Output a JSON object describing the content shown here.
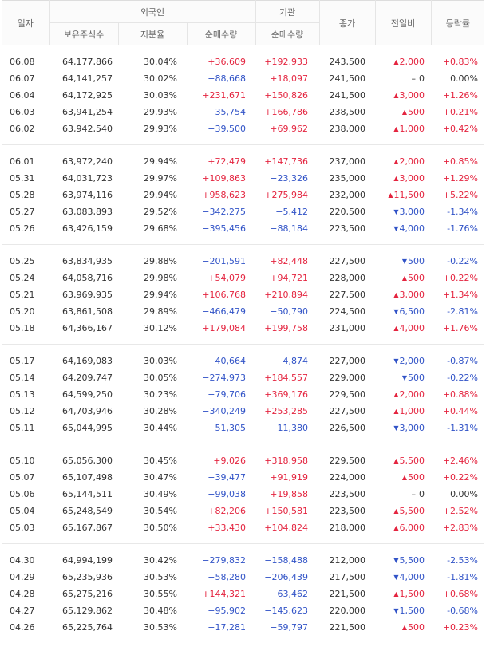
{
  "headers": {
    "date": "일자",
    "foreign": "외국인",
    "institution": "기관",
    "close": "종가",
    "change": "전일비",
    "rate": "등락률",
    "shares_held": "보유주식수",
    "holding_ratio": "지분율",
    "foreign_net": "순매수량",
    "inst_net": "순매수량"
  },
  "colors": {
    "up": "#e4243f",
    "down": "#3153c7"
  },
  "groups": [
    [
      {
        "date": "06.08",
        "held": "64,177,866",
        "ratio": "30.04%",
        "fnet": "+36,609",
        "inet": "+192,933",
        "close": "243,500",
        "dir": "up",
        "chg": "2,000",
        "rate": "+0.83%"
      },
      {
        "date": "06.07",
        "held": "64,141,257",
        "ratio": "30.02%",
        "fnet": "−88,668",
        "inet": "+18,097",
        "close": "241,500",
        "dir": "flat",
        "chg": "0",
        "rate": "0.00%"
      },
      {
        "date": "06.04",
        "held": "64,172,925",
        "ratio": "30.03%",
        "fnet": "+231,671",
        "inet": "+150,826",
        "close": "241,500",
        "dir": "up",
        "chg": "3,000",
        "rate": "+1.26%"
      },
      {
        "date": "06.03",
        "held": "63,941,254",
        "ratio": "29.93%",
        "fnet": "−35,754",
        "inet": "+166,786",
        "close": "238,500",
        "dir": "up",
        "chg": "500",
        "rate": "+0.21%"
      },
      {
        "date": "06.02",
        "held": "63,942,540",
        "ratio": "29.93%",
        "fnet": "−39,500",
        "inet": "+69,962",
        "close": "238,000",
        "dir": "up",
        "chg": "1,000",
        "rate": "+0.42%"
      }
    ],
    [
      {
        "date": "06.01",
        "held": "63,972,240",
        "ratio": "29.94%",
        "fnet": "+72,479",
        "inet": "+147,736",
        "close": "237,000",
        "dir": "up",
        "chg": "2,000",
        "rate": "+0.85%"
      },
      {
        "date": "05.31",
        "held": "64,031,723",
        "ratio": "29.97%",
        "fnet": "+109,863",
        "inet": "−23,326",
        "close": "235,000",
        "dir": "up",
        "chg": "3,000",
        "rate": "+1.29%"
      },
      {
        "date": "05.28",
        "held": "63,974,116",
        "ratio": "29.94%",
        "fnet": "+958,623",
        "inet": "+275,984",
        "close": "232,000",
        "dir": "up",
        "chg": "11,500",
        "rate": "+5.22%"
      },
      {
        "date": "05.27",
        "held": "63,083,893",
        "ratio": "29.52%",
        "fnet": "−342,275",
        "inet": "−5,412",
        "close": "220,500",
        "dir": "down",
        "chg": "3,000",
        "rate": "-1.34%"
      },
      {
        "date": "05.26",
        "held": "63,426,159",
        "ratio": "29.68%",
        "fnet": "−395,456",
        "inet": "−88,184",
        "close": "223,500",
        "dir": "down",
        "chg": "4,000",
        "rate": "-1.76%"
      }
    ],
    [
      {
        "date": "05.25",
        "held": "63,834,935",
        "ratio": "29.88%",
        "fnet": "−201,591",
        "inet": "+82,448",
        "close": "227,500",
        "dir": "down",
        "chg": "500",
        "rate": "-0.22%"
      },
      {
        "date": "05.24",
        "held": "64,058,716",
        "ratio": "29.98%",
        "fnet": "+54,079",
        "inet": "+94,721",
        "close": "228,000",
        "dir": "up",
        "chg": "500",
        "rate": "+0.22%"
      },
      {
        "date": "05.21",
        "held": "63,969,935",
        "ratio": "29.94%",
        "fnet": "+106,768",
        "inet": "+210,894",
        "close": "227,500",
        "dir": "up",
        "chg": "3,000",
        "rate": "+1.34%"
      },
      {
        "date": "05.20",
        "held": "63,861,508",
        "ratio": "29.89%",
        "fnet": "−466,479",
        "inet": "−50,790",
        "close": "224,500",
        "dir": "down",
        "chg": "6,500",
        "rate": "-2.81%"
      },
      {
        "date": "05.18",
        "held": "64,366,167",
        "ratio": "30.12%",
        "fnet": "+179,084",
        "inet": "+199,758",
        "close": "231,000",
        "dir": "up",
        "chg": "4,000",
        "rate": "+1.76%"
      }
    ],
    [
      {
        "date": "05.17",
        "held": "64,169,083",
        "ratio": "30.03%",
        "fnet": "−40,664",
        "inet": "−4,874",
        "close": "227,000",
        "dir": "down",
        "chg": "2,000",
        "rate": "-0.87%"
      },
      {
        "date": "05.14",
        "held": "64,209,747",
        "ratio": "30.05%",
        "fnet": "−274,973",
        "inet": "+184,557",
        "close": "229,000",
        "dir": "down",
        "chg": "500",
        "rate": "-0.22%"
      },
      {
        "date": "05.13",
        "held": "64,599,250",
        "ratio": "30.23%",
        "fnet": "−79,706",
        "inet": "+369,176",
        "close": "229,500",
        "dir": "up",
        "chg": "2,000",
        "rate": "+0.88%"
      },
      {
        "date": "05.12",
        "held": "64,703,946",
        "ratio": "30.28%",
        "fnet": "−340,249",
        "inet": "+253,285",
        "close": "227,500",
        "dir": "up",
        "chg": "1,000",
        "rate": "+0.44%"
      },
      {
        "date": "05.11",
        "held": "65,044,995",
        "ratio": "30.44%",
        "fnet": "−51,305",
        "inet": "−11,380",
        "close": "226,500",
        "dir": "down",
        "chg": "3,000",
        "rate": "-1.31%"
      }
    ],
    [
      {
        "date": "05.10",
        "held": "65,056,300",
        "ratio": "30.45%",
        "fnet": "+9,026",
        "inet": "+318,958",
        "close": "229,500",
        "dir": "up",
        "chg": "5,500",
        "rate": "+2.46%"
      },
      {
        "date": "05.07",
        "held": "65,107,498",
        "ratio": "30.47%",
        "fnet": "−39,477",
        "inet": "+91,919",
        "close": "224,000",
        "dir": "up",
        "chg": "500",
        "rate": "+0.22%"
      },
      {
        "date": "05.06",
        "held": "65,144,511",
        "ratio": "30.49%",
        "fnet": "−99,038",
        "inet": "+19,858",
        "close": "223,500",
        "dir": "flat",
        "chg": "0",
        "rate": "0.00%"
      },
      {
        "date": "05.04",
        "held": "65,248,549",
        "ratio": "30.54%",
        "fnet": "+82,206",
        "inet": "+150,581",
        "close": "223,500",
        "dir": "up",
        "chg": "5,500",
        "rate": "+2.52%"
      },
      {
        "date": "05.03",
        "held": "65,167,867",
        "ratio": "30.50%",
        "fnet": "+33,430",
        "inet": "+104,824",
        "close": "218,000",
        "dir": "up",
        "chg": "6,000",
        "rate": "+2.83%"
      }
    ],
    [
      {
        "date": "04.30",
        "held": "64,994,199",
        "ratio": "30.42%",
        "fnet": "−279,832",
        "inet": "−158,488",
        "close": "212,000",
        "dir": "down",
        "chg": "5,500",
        "rate": "-2.53%"
      },
      {
        "date": "04.29",
        "held": "65,235,936",
        "ratio": "30.53%",
        "fnet": "−58,280",
        "inet": "−206,439",
        "close": "217,500",
        "dir": "down",
        "chg": "4,000",
        "rate": "-1.81%"
      },
      {
        "date": "04.28",
        "held": "65,275,216",
        "ratio": "30.55%",
        "fnet": "+144,321",
        "inet": "−63,462",
        "close": "221,500",
        "dir": "up",
        "chg": "1,500",
        "rate": "+0.68%"
      },
      {
        "date": "04.27",
        "held": "65,129,862",
        "ratio": "30.48%",
        "fnet": "−95,902",
        "inet": "−145,623",
        "close": "220,000",
        "dir": "down",
        "chg": "1,500",
        "rate": "-0.68%"
      },
      {
        "date": "04.26",
        "held": "65,225,764",
        "ratio": "30.53%",
        "fnet": "−17,281",
        "inet": "−59,797",
        "close": "221,500",
        "dir": "up",
        "chg": "500",
        "rate": "+0.23%"
      }
    ]
  ]
}
